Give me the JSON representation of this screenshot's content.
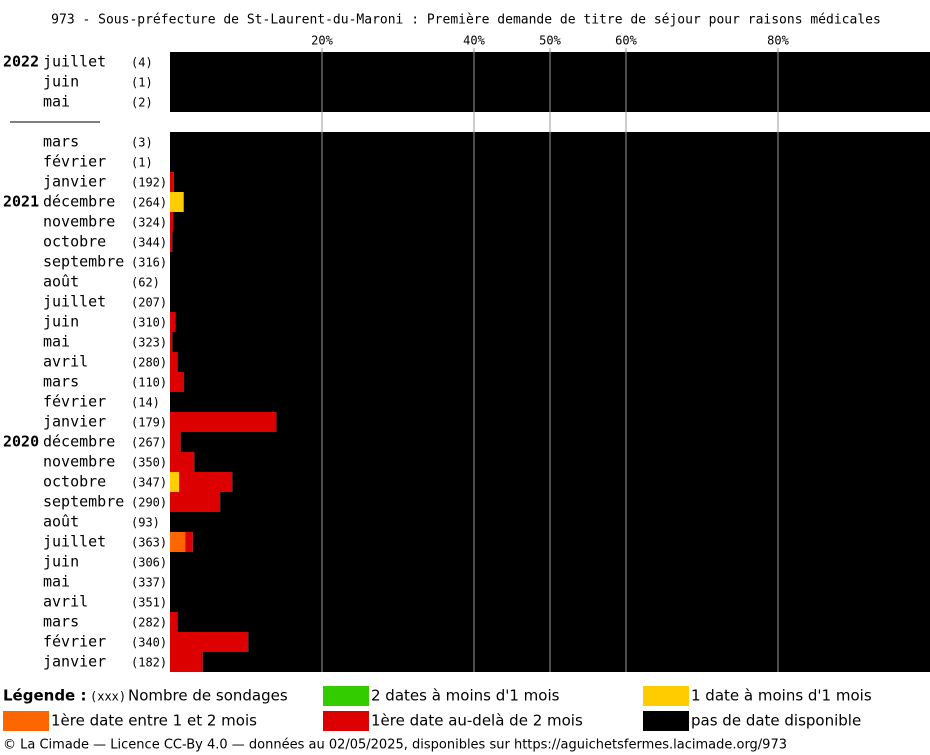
{
  "chart_data": {
    "type": "stacked-barh",
    "title": "973 - Sous-préfecture de St-Laurent-du-Maroni : Première demande de titre de séjour pour raisons médicales",
    "years": [
      "2022",
      null,
      null,
      null,
      null,
      null,
      null,
      "2021",
      null,
      null,
      null,
      null,
      null,
      null,
      null,
      null,
      null,
      null,
      null,
      "2020",
      null,
      null,
      null,
      null,
      null,
      null,
      null,
      null,
      null,
      null,
      null
    ],
    "categories": [
      "juillet",
      "juin",
      "mai",
      null,
      "mars",
      "février",
      "janvier",
      "décembre",
      "novembre",
      "octobre",
      "septembre",
      "août",
      "juillet",
      "juin",
      "mai",
      "avril",
      "mars",
      "février",
      "janvier",
      "décembre",
      "novembre",
      "octobre",
      "septembre",
      "août",
      "juillet",
      "juin",
      "mai",
      "avril",
      "mars",
      "février",
      "janvier"
    ],
    "counts": [
      "(4)",
      "(1)",
      "(2)",
      null,
      "(3)",
      "(1)",
      "(192)",
      "(264)",
      "(324)",
      "(344)",
      "(316)",
      "(62)",
      "(207)",
      "(310)",
      "(323)",
      "(280)",
      "(110)",
      "(14)",
      "(179)",
      "(267)",
      "(350)",
      "(347)",
      "(290)",
      "(93)",
      "(363)",
      "(306)",
      "(337)",
      "(351)",
      "(282)",
      "(340)",
      "(182)"
    ],
    "series": [
      {
        "name": "2 dates à moins d'1 mois",
        "color": "#33cc00",
        "values": [
          0,
          0,
          0,
          null,
          0,
          0,
          0,
          0,
          0,
          0,
          0,
          0,
          0,
          0,
          0,
          0,
          0,
          0,
          0,
          0,
          0,
          0,
          0,
          0,
          0,
          0,
          0,
          0,
          0,
          0,
          0
        ]
      },
      {
        "name": "1 date à moins d'1 mois",
        "color": "#ffcc00",
        "values": [
          0,
          0,
          0,
          null,
          0,
          0,
          0,
          1.8,
          0,
          0,
          0,
          0,
          0,
          0,
          0,
          0,
          0,
          0,
          0,
          0,
          0,
          1.2,
          0,
          0,
          0,
          0,
          0,
          0,
          0,
          0,
          0
        ]
      },
      {
        "name": "1ère date entre 1 et 2 mois",
        "color": "#ff6600",
        "values": [
          0,
          0,
          0,
          null,
          0,
          0,
          0,
          0,
          0,
          0,
          0,
          0,
          0,
          0,
          0,
          0,
          0,
          0,
          0,
          0,
          0,
          0,
          0,
          0,
          2.0,
          0,
          0,
          0,
          0,
          0,
          0
        ]
      },
      {
        "name": "1ère date au-delà de 2 mois",
        "color": "#dd0000",
        "values": [
          0,
          0,
          0,
          null,
          0,
          0,
          0.5,
          0,
          0.4,
          0.3,
          0,
          0,
          0,
          0.7,
          0.3,
          1.0,
          1.8,
          0,
          14.0,
          1.4,
          3.2,
          7.0,
          6.6,
          0,
          1.0,
          0,
          0,
          0,
          1.0,
          10.3,
          4.3
        ]
      },
      {
        "name": "pas de date disponible",
        "color": "#000000",
        "values": [
          100,
          100,
          100,
          null,
          100,
          100,
          99.5,
          98.2,
          99.6,
          99.7,
          100,
          100,
          100,
          99.3,
          99.7,
          99,
          98.2,
          100,
          86,
          98.6,
          96.8,
          91.8,
          93.4,
          100,
          97,
          100,
          100,
          100,
          99,
          89.7,
          95.7
        ]
      }
    ],
    "xlim": [
      0,
      100
    ],
    "xticks": [
      {
        "value": 20,
        "label": "20%"
      },
      {
        "value": 40,
        "label": "40%"
      },
      {
        "value": 50,
        "label": "50%"
      },
      {
        "value": 60,
        "label": "60%"
      },
      {
        "value": 80,
        "label": "80%"
      }
    ],
    "legend_title": "Légende :",
    "count_legend_key": "(xxx)",
    "count_legend_label": "Nombre de sondages",
    "footer": "© La Cimade — Licence CC-By 4.0 — données au 02/05/2025, disponibles sur https://aguichetsfermes.lacimade.org/973"
  }
}
